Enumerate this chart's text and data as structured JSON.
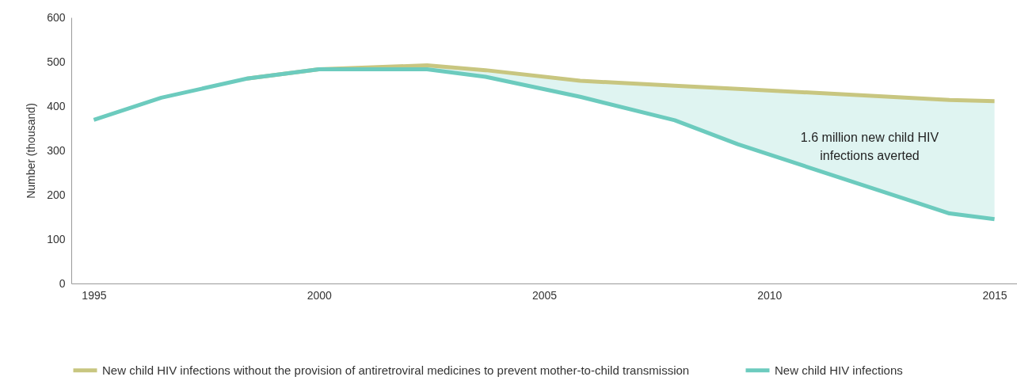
{
  "chart_data": {
    "type": "line",
    "ylabel": "Number (thousand)",
    "x": [
      1995,
      1996.5,
      1998.4,
      2000,
      2002.4,
      2003.7,
      2005.8,
      2007.9,
      2009.3,
      2014,
      2015
    ],
    "xlim": [
      1994.5,
      2015.5
    ],
    "xticks": [
      1995,
      2000,
      2005,
      2010,
      2015
    ],
    "ylim": [
      0,
      600
    ],
    "yticks": [
      0,
      100,
      200,
      300,
      400,
      500,
      600
    ],
    "series": [
      {
        "name": "New child HIV infections without the provision of antiretroviral medicines to prevent mother-to-child transmission",
        "color": "#c8c680",
        "values": [
          null,
          null,
          462,
          483,
          492,
          481,
          457,
          446,
          439,
          414,
          411
        ]
      },
      {
        "name": "New child HIV infections",
        "color": "#6ccbbe",
        "values": [
          369,
          419,
          462,
          483,
          483,
          466,
          421,
          368,
          314,
          158,
          145
        ],
        "lower": [
          369,
          419,
          462,
          483,
          483,
          466,
          421,
          368,
          314,
          158,
          145
        ],
        "upper": [
          369,
          419,
          462,
          483,
          492,
          481,
          457,
          446,
          439,
          414,
          411
        ]
      }
    ],
    "annotations": [
      "1.6 million new child HIV infections averted"
    ],
    "grid": false,
    "legend": "bottom"
  }
}
